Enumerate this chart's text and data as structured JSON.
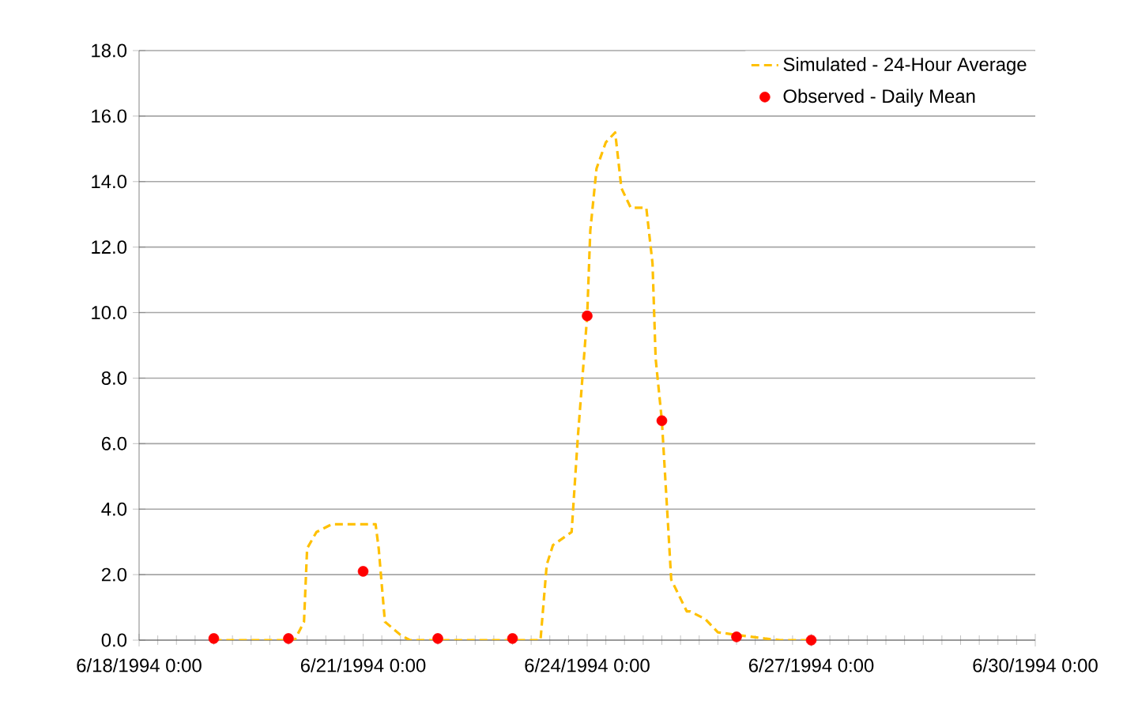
{
  "chart_data": {
    "type": "line",
    "xlim": [
      "1994-06-18T00:00",
      "1994-06-30T00:00"
    ],
    "xticks": [
      {
        "value": "1994-06-18T00:00",
        "label": "6/18/1994 0:00"
      },
      {
        "value": "1994-06-21T00:00",
        "label": "6/21/1994 0:00"
      },
      {
        "value": "1994-06-24T00:00",
        "label": "6/24/1994 0:00"
      },
      {
        "value": "1994-06-27T00:00",
        "label": "6/27/1994 0:00"
      },
      {
        "value": "1994-06-30T00:00",
        "label": "6/30/1994 0:00"
      }
    ],
    "ylim": [
      0,
      18
    ],
    "yticks": [
      {
        "value": 0,
        "label": "0.0"
      },
      {
        "value": 2,
        "label": "2.0"
      },
      {
        "value": 4,
        "label": "4.0"
      },
      {
        "value": 6,
        "label": "6.0"
      },
      {
        "value": 8,
        "label": "8.0"
      },
      {
        "value": 10,
        "label": "10.0"
      },
      {
        "value": 12,
        "label": "12.0"
      },
      {
        "value": 14,
        "label": "14.0"
      },
      {
        "value": 16,
        "label": "16.0"
      },
      {
        "value": 18,
        "label": "18.0"
      }
    ],
    "grid": "y",
    "legend": "top right",
    "series": [
      {
        "name": "Simulated - 24-Hour Average",
        "color": "#ffc000",
        "line_style": "dashed",
        "marker": "none",
        "x": [
          "1994-06-19T00:00",
          "1994-06-20T02:00",
          "1994-06-20T05:00",
          "1994-06-20T06:00",
          "1994-06-20T09:00",
          "1994-06-20T14:00",
          "1994-06-21T04:00",
          "1994-06-21T05:00",
          "1994-06-21T07:00",
          "1994-06-21T12:00",
          "1994-06-21T15:00",
          "1994-06-23T09:00",
          "1994-06-23T11:00",
          "1994-06-23T13:00",
          "1994-06-23T19:00",
          "1994-06-23T21:00",
          "1994-06-24T00:00",
          "1994-06-24T01:00",
          "1994-06-24T03:00",
          "1994-06-24T06:00",
          "1994-06-24T09:00",
          "1994-06-24T11:00",
          "1994-06-24T14:00",
          "1994-06-24T19:00",
          "1994-06-24T21:00",
          "1994-06-24T22:00",
          "1994-06-25T00:00",
          "1994-06-25T02:00",
          "1994-06-25T03:00",
          "1994-06-25T08:00",
          "1994-06-25T09:00",
          "1994-06-25T14:00",
          "1994-06-25T18:00",
          "1994-06-26T00:00",
          "1994-06-26T09:00",
          "1994-06-26T14:00",
          "1994-06-27T00:00"
        ],
        "values": [
          0,
          0,
          0.56,
          2.8,
          3.3,
          3.54,
          3.54,
          2.8,
          0.56,
          0.16,
          0,
          0,
          2.3,
          2.9,
          3.3,
          6.2,
          9.9,
          12.5,
          14.4,
          15.2,
          15.5,
          13.8,
          13.2,
          13.2,
          11.5,
          8.6,
          6.7,
          3.5,
          1.85,
          0.88,
          0.88,
          0.64,
          0.24,
          0.16,
          0.05,
          0,
          0
        ]
      },
      {
        "name": "Observed - Daily Mean",
        "type": "scatter",
        "color": "#ff0000",
        "marker": "circle",
        "x": [
          "1994-06-19T00:00",
          "1994-06-20T00:00",
          "1994-06-21T00:00",
          "1994-06-22T00:00",
          "1994-06-23T00:00",
          "1994-06-24T00:00",
          "1994-06-25T00:00",
          "1994-06-26T00:00",
          "1994-06-27T00:00"
        ],
        "values": [
          0.05,
          0.05,
          2.1,
          0.05,
          0.05,
          9.9,
          6.7,
          0.1,
          0.0
        ]
      }
    ]
  }
}
